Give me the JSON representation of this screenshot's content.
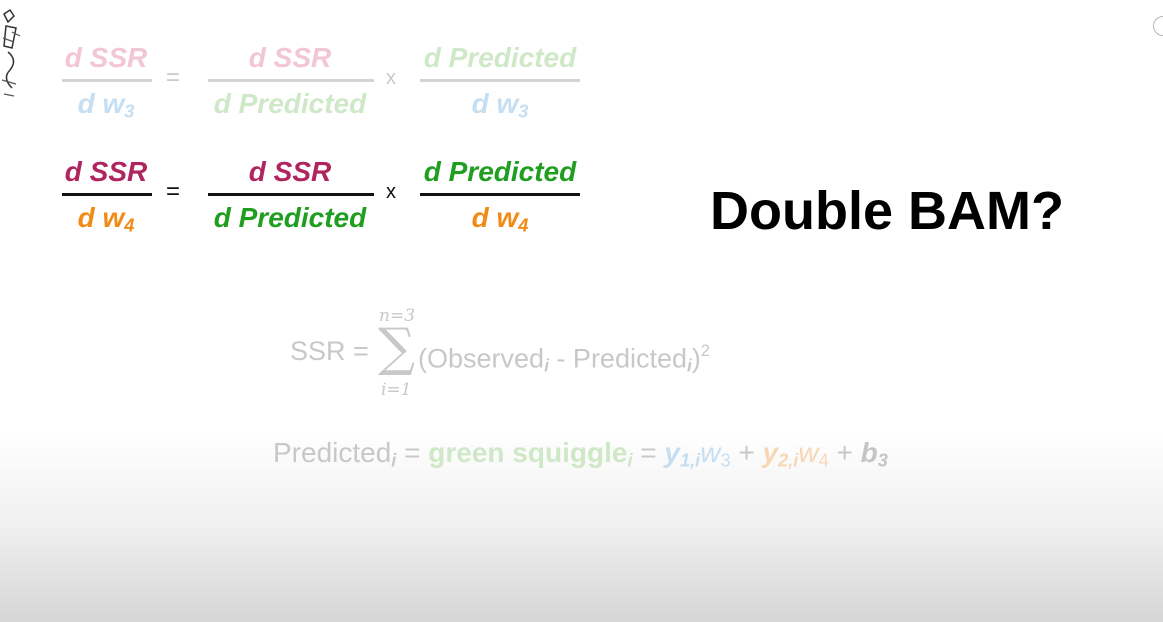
{
  "row_faded": {
    "left_num": "d SSR",
    "left_den_base": "d w",
    "left_den_sub": "3",
    "equals": "=",
    "mid_num": "d SSR",
    "mid_den": "d Predicted",
    "times": "x",
    "right_num": "d Predicted",
    "right_den_base": "d w",
    "right_den_sub": "3"
  },
  "row_active": {
    "left_num": "d SSR",
    "left_den_base": "d w",
    "left_den_sub": "4",
    "equals": "=",
    "mid_num": "d SSR",
    "mid_den": "d Predicted",
    "times": "x",
    "right_num": "d Predicted",
    "right_den_base": "d w",
    "right_den_sub": "4"
  },
  "headline": "Double BAM?",
  "ssr_formula": {
    "lhs": "SSR =",
    "sum_upper": "n=3",
    "sum_lower": "i=1",
    "body_open": "(Observed",
    "sub_i": "i",
    "minus": " - Predicted",
    "close": ")",
    "power": "2"
  },
  "predicted_formula": {
    "lhs": "Predicted",
    "sub_i": "i",
    "eq1": " = ",
    "green_squiggle": "green squiggle",
    "eq2": " = ",
    "y1": "y",
    "y1_sub": "1,i",
    "w3_base": "w",
    "w3_sub": "3",
    "plus1": " + ",
    "y2": "y",
    "y2_sub": "2,i",
    "w4_base": "w",
    "w4_sub": "4",
    "plus2": " + ",
    "b3_base": "b",
    "b3_sub": "3"
  },
  "colors": {
    "magenta": "#b0245f",
    "orange": "#f28b16",
    "green": "#1f9e1f",
    "faded_pink": "#f2c6d4",
    "faded_blue": "#c5def2",
    "faded_green": "#cfe8c8"
  },
  "icons": [
    "logo-sketch-icon",
    "circle-icon"
  ]
}
